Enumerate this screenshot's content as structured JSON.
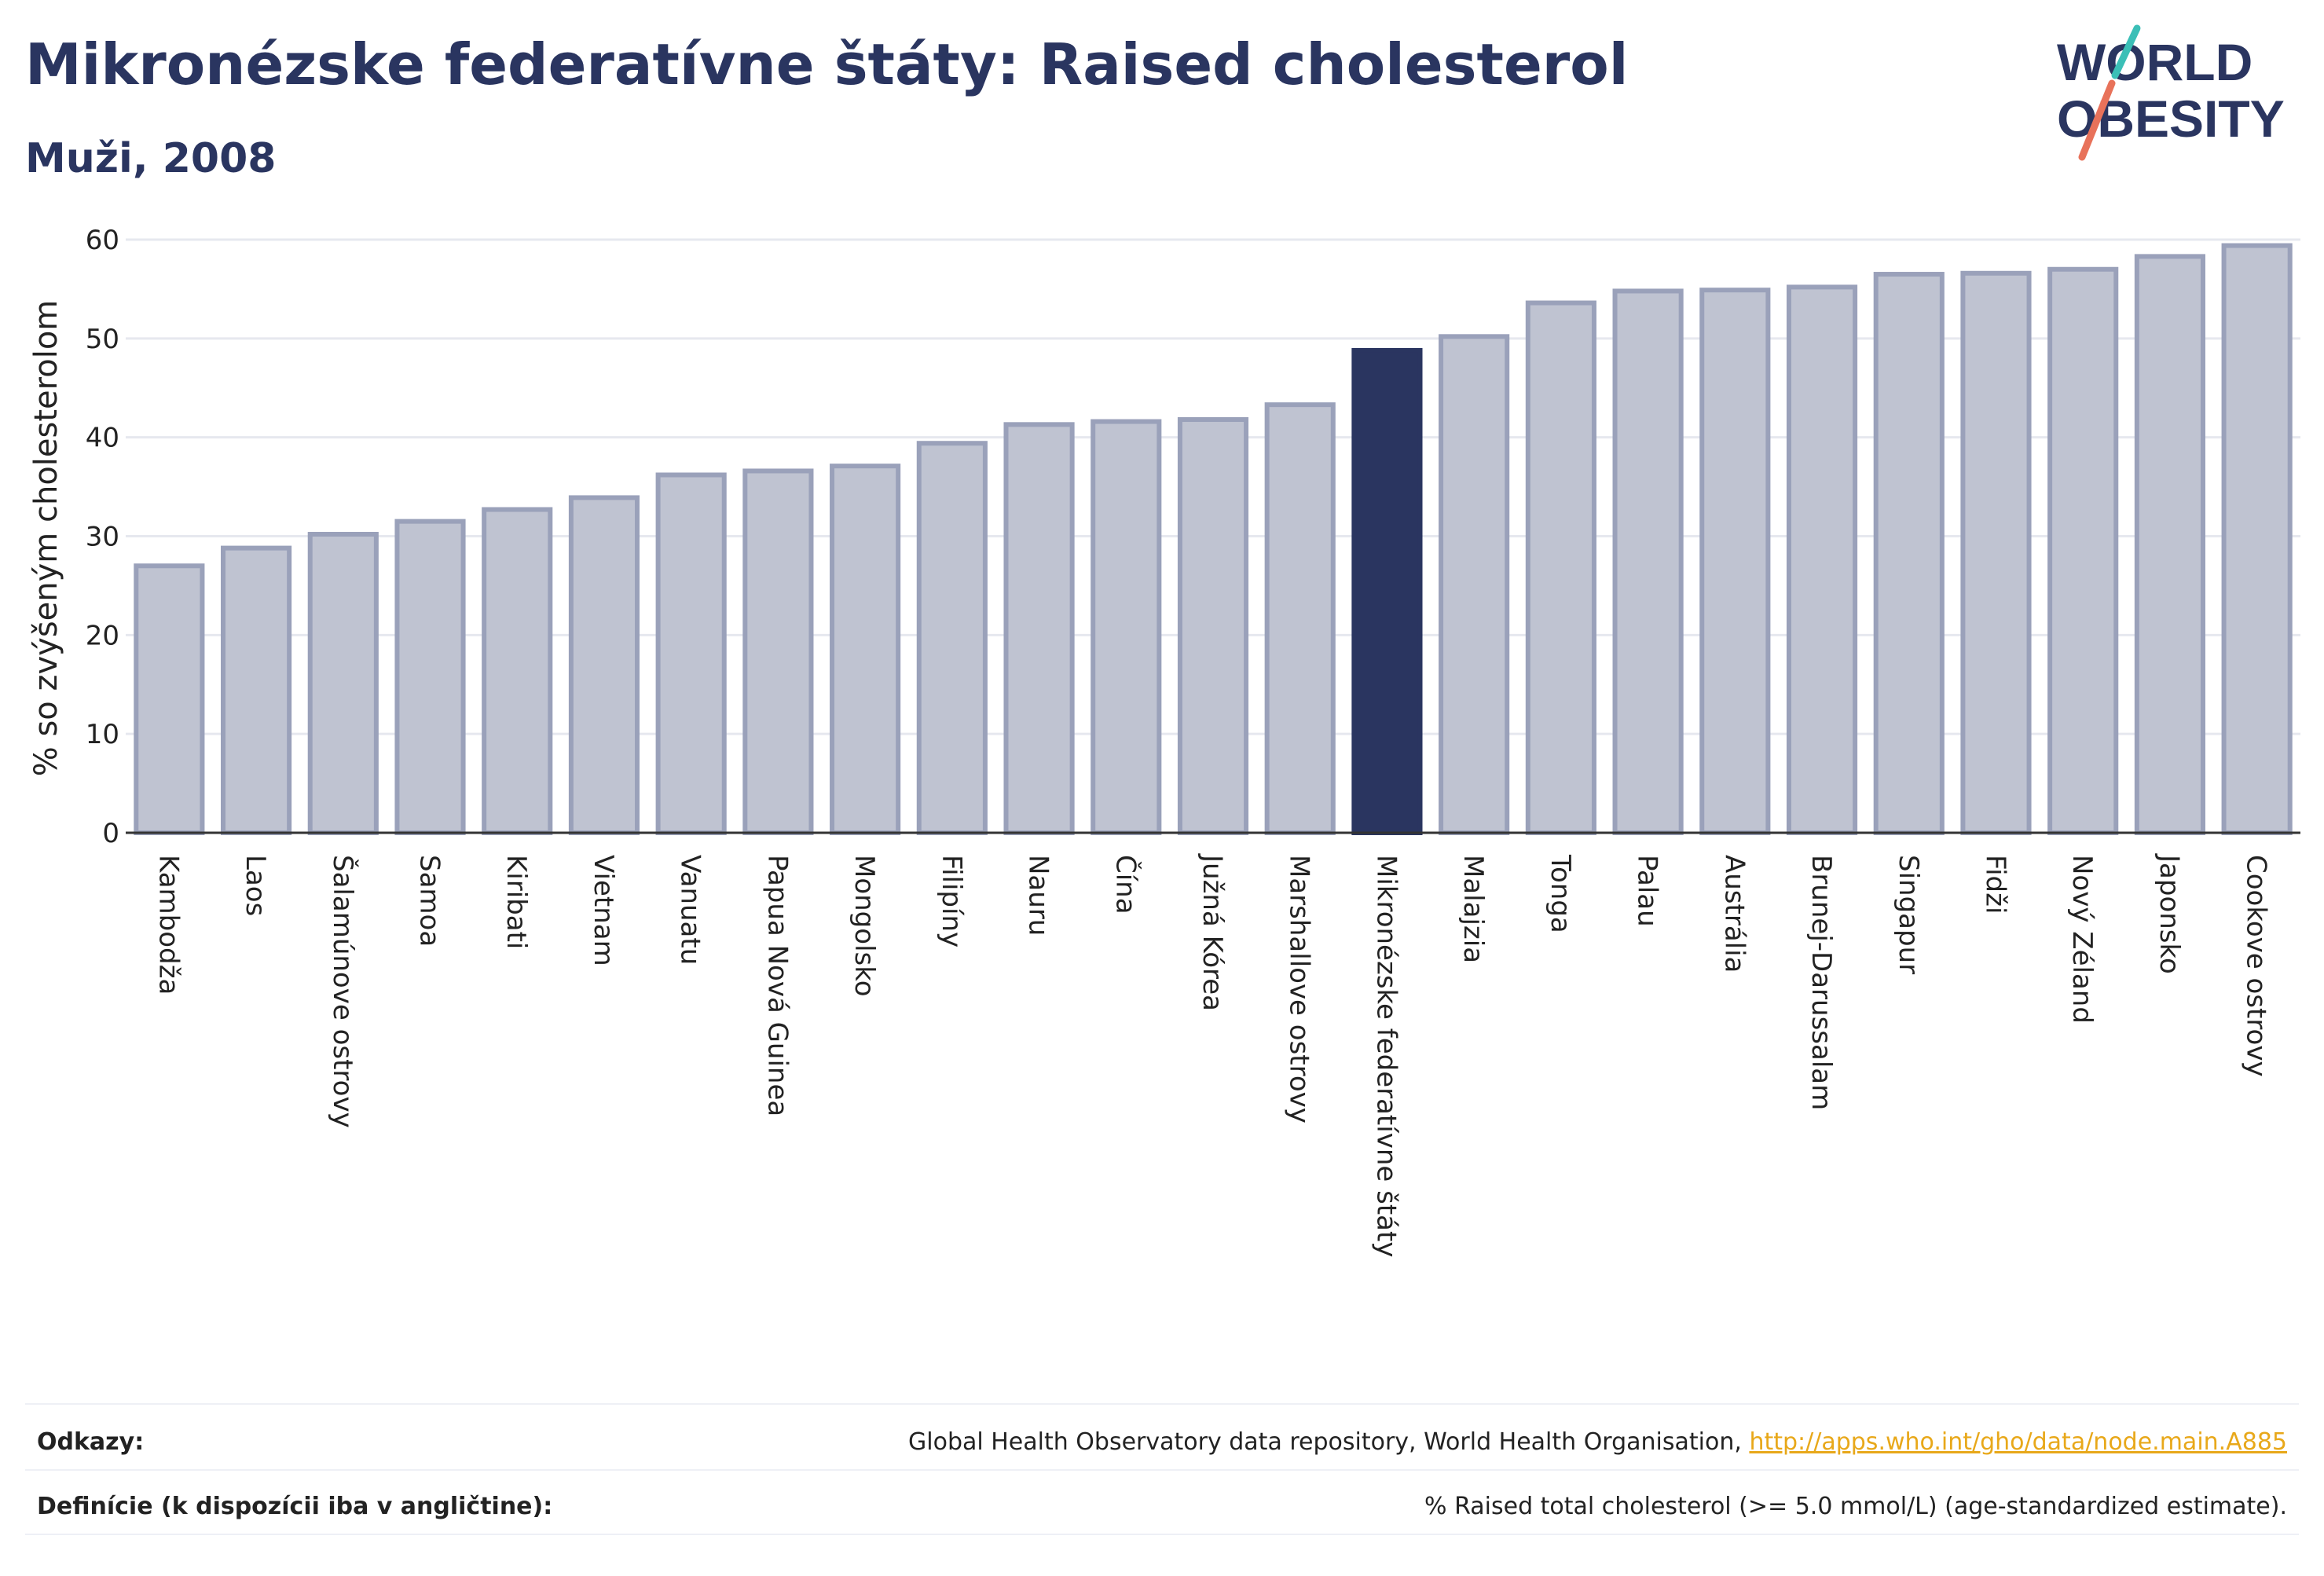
{
  "header": {
    "title": "Mikronézske federatívne štáty: Raised cholesterol",
    "subtitle": "Muži, 2008"
  },
  "logo": {
    "line1": "WORLD",
    "line2": "OBESITY"
  },
  "colors": {
    "bar": "#bfc3d1",
    "bar_stroke": "#9aa1ba",
    "highlight": "#2a3560",
    "grid": "#e6e8ef"
  },
  "chart_data": {
    "type": "bar",
    "title": "Mikronézske federatívne štáty: Raised cholesterol",
    "subtitle": "Muži, 2008",
    "ylabel": "% so zvýšeným cholesterolom",
    "ylim": [
      0,
      60
    ],
    "yticks": [
      0,
      10,
      20,
      30,
      40,
      50,
      60
    ],
    "grid": true,
    "highlight": "Mikronézske federatívne štáty",
    "categories": [
      "Kambodža",
      "Laos",
      "Šalamúnove ostrovy",
      "Samoa",
      "Kiribati",
      "Vietnam",
      "Vanuatu",
      "Papua Nová Guinea",
      "Mongolsko",
      "Filipíny",
      "Nauru",
      "Čína",
      "Južná Kórea",
      "Marshallove ostrovy",
      "Mikronézske federatívne štáty",
      "Malajzia",
      "Tonga",
      "Palau",
      "Austrália",
      "Brunej-Darussalam",
      "Singapur",
      "Fidži",
      "Nový Zéland",
      "Japonsko",
      "Cookove ostrovy"
    ],
    "values": [
      27.0,
      28.8,
      30.2,
      31.5,
      32.7,
      33.9,
      36.2,
      36.6,
      37.1,
      39.4,
      41.3,
      41.6,
      41.8,
      43.3,
      48.8,
      50.2,
      53.6,
      54.8,
      54.9,
      55.2,
      56.5,
      56.6,
      57.0,
      58.3,
      59.4
    ]
  },
  "footer": {
    "refs_label": "Odkazy:",
    "refs_text": "Global Health Observatory data repository, World Health Organisation, ",
    "refs_link": "http://apps.who.int/gho/data/node.main.A885",
    "defs_label": "Definície (k dispozícii iba v angličtine):",
    "defs_text": "% Raised total cholesterol (>= 5.0 mmol/L) (age-standardized estimate)."
  }
}
